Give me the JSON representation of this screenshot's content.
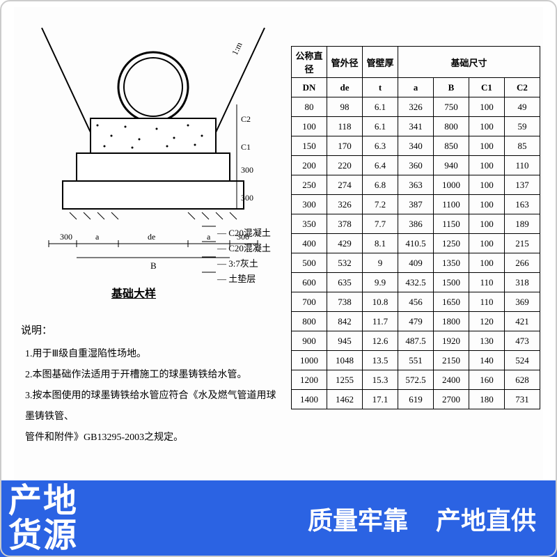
{
  "diagram": {
    "title": "基础大样",
    "dim_labels": {
      "left300": "300",
      "a_l": "a",
      "de": "de",
      "a_r": "a",
      "right300": "300",
      "B": "B",
      "C1": "C1",
      "C2": "C2",
      "h300a": "300",
      "h300b": "300",
      "slope": "1:m"
    },
    "legend": [
      "C20混凝土",
      "C20混凝土",
      "3:7灰土",
      "土垫层"
    ],
    "stroke": "#000000",
    "bg": "#ffffff",
    "concrete_dot": "#000000"
  },
  "notes": {
    "heading": "说明：",
    "items": [
      "1.用于Ⅲ级自重湿陷性场地。",
      "2.本图基础作法适用于开槽施工的球墨铸铁给水管。",
      "3.按本图使用的球墨铸铁给水管应符合《水及燃气管道用球墨铸铁管、",
      "管件和附件》GB13295-2003之规定。"
    ]
  },
  "table": {
    "headers": {
      "c1": "公称直径",
      "c2": "管外径",
      "c3": "管壁厚",
      "group": "基础尺寸",
      "sub1": "DN",
      "sub2": "de",
      "sub3": "t",
      "sub4": "a",
      "sub5": "B",
      "sub6": "C1",
      "sub7": "C2"
    },
    "rows": [
      [
        "80",
        "98",
        "6.1",
        "326",
        "750",
        "100",
        "49"
      ],
      [
        "100",
        "118",
        "6.1",
        "341",
        "800",
        "100",
        "59"
      ],
      [
        "150",
        "170",
        "6.3",
        "340",
        "850",
        "100",
        "85"
      ],
      [
        "200",
        "220",
        "6.4",
        "360",
        "940",
        "100",
        "110"
      ],
      [
        "250",
        "274",
        "6.8",
        "363",
        "1000",
        "100",
        "137"
      ],
      [
        "300",
        "326",
        "7.2",
        "387",
        "1100",
        "100",
        "163"
      ],
      [
        "350",
        "378",
        "7.7",
        "386",
        "1150",
        "100",
        "189"
      ],
      [
        "400",
        "429",
        "8.1",
        "410.5",
        "1250",
        "100",
        "215"
      ],
      [
        "500",
        "532",
        "9",
        "409",
        "1350",
        "100",
        "266"
      ],
      [
        "600",
        "635",
        "9.9",
        "432.5",
        "1500",
        "110",
        "318"
      ],
      [
        "700",
        "738",
        "10.8",
        "456",
        "1650",
        "110",
        "369"
      ],
      [
        "800",
        "842",
        "11.7",
        "479",
        "1800",
        "120",
        "421"
      ],
      [
        "900",
        "945",
        "12.6",
        "487.5",
        "1920",
        "130",
        "473"
      ],
      [
        "1000",
        "1048",
        "13.5",
        "551",
        "2150",
        "140",
        "524"
      ],
      [
        "1200",
        "1255",
        "15.3",
        "572.5",
        "2400",
        "160",
        "628"
      ],
      [
        "1400",
        "1462",
        "17.1",
        "619",
        "2700",
        "180",
        "731"
      ]
    ]
  },
  "overlay": {
    "left_l1": "产地",
    "left_l2": "货源",
    "right1": "质量牢靠",
    "right2": "产地直供",
    "bg": "#2b63e3",
    "fg": "#ffffff"
  }
}
